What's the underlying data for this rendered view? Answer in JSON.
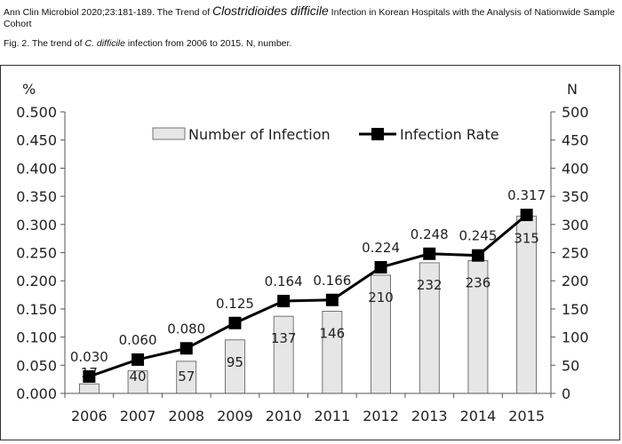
{
  "header": {
    "citation_prefix": "Ann Clin Microbiol 2020;23:181-189. The Trend of ",
    "citation_species": "Clostridioides difficile",
    "citation_suffix": " Infection in Korean Hospitals with the Analysis of Nationwide Sample Cohort",
    "caption_prefix": "Fig. 2. The trend of ",
    "caption_species": "C. difficile",
    "caption_suffix": " infection from 2006 to 2015. N, number."
  },
  "chart_data": {
    "type": "bar",
    "categories": [
      "2006",
      "2007",
      "2008",
      "2009",
      "2010",
      "2011",
      "2012",
      "2013",
      "2014",
      "2015"
    ],
    "series": [
      {
        "name": "Number of Infection",
        "type": "bar",
        "axis": "right",
        "values": [
          17,
          40,
          57,
          95,
          137,
          146,
          210,
          232,
          236,
          315
        ],
        "labels": [
          "17",
          "40",
          "57",
          "95",
          "137",
          "146",
          "210",
          "232",
          "236",
          "315"
        ],
        "color": "#e6e6e6"
      },
      {
        "name": "Infection Rate",
        "type": "line",
        "axis": "left",
        "values": [
          0.03,
          0.06,
          0.08,
          0.125,
          0.164,
          0.166,
          0.224,
          0.248,
          0.245,
          0.317
        ],
        "labels": [
          "0.030",
          "0.060",
          "0.080",
          "0.125",
          "0.164",
          "0.166",
          "0.224",
          "0.248",
          "0.245",
          "0.317"
        ],
        "color": "#000000"
      }
    ],
    "left_axis": {
      "label": "%",
      "ylim": [
        0,
        0.5
      ],
      "ticks": [
        "0.000",
        "0.050",
        "0.100",
        "0.150",
        "0.200",
        "0.250",
        "0.300",
        "0.350",
        "0.400",
        "0.450",
        "0.500"
      ]
    },
    "right_axis": {
      "label": "N",
      "ylim": [
        0,
        500
      ],
      "ticks": [
        "0",
        "50",
        "100",
        "150",
        "200",
        "250",
        "300",
        "350",
        "400",
        "450",
        "500"
      ]
    },
    "grid": false,
    "legend_position": "top-center"
  }
}
